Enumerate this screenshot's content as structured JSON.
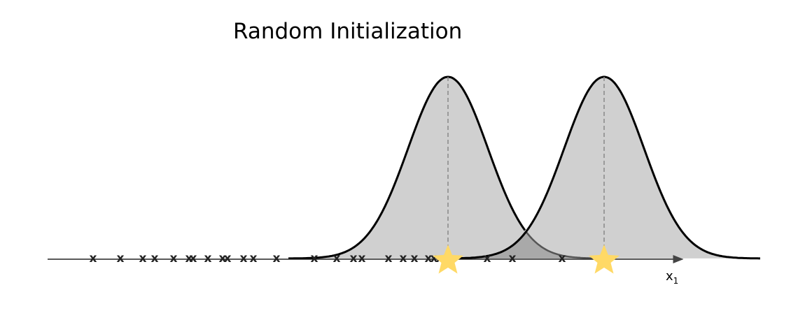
{
  "title": "Random Initialization",
  "axis_label": {
    "text": "x",
    "subscript": "1"
  },
  "points": [
    "x",
    "x",
    "x",
    "x",
    "x",
    "x",
    "x",
    "x",
    "x",
    "x",
    "x",
    "x",
    "x",
    "x",
    "x",
    "x",
    "x",
    "x",
    "x",
    "x",
    "x",
    "x",
    "x",
    "x",
    "x",
    "x"
  ]
}
